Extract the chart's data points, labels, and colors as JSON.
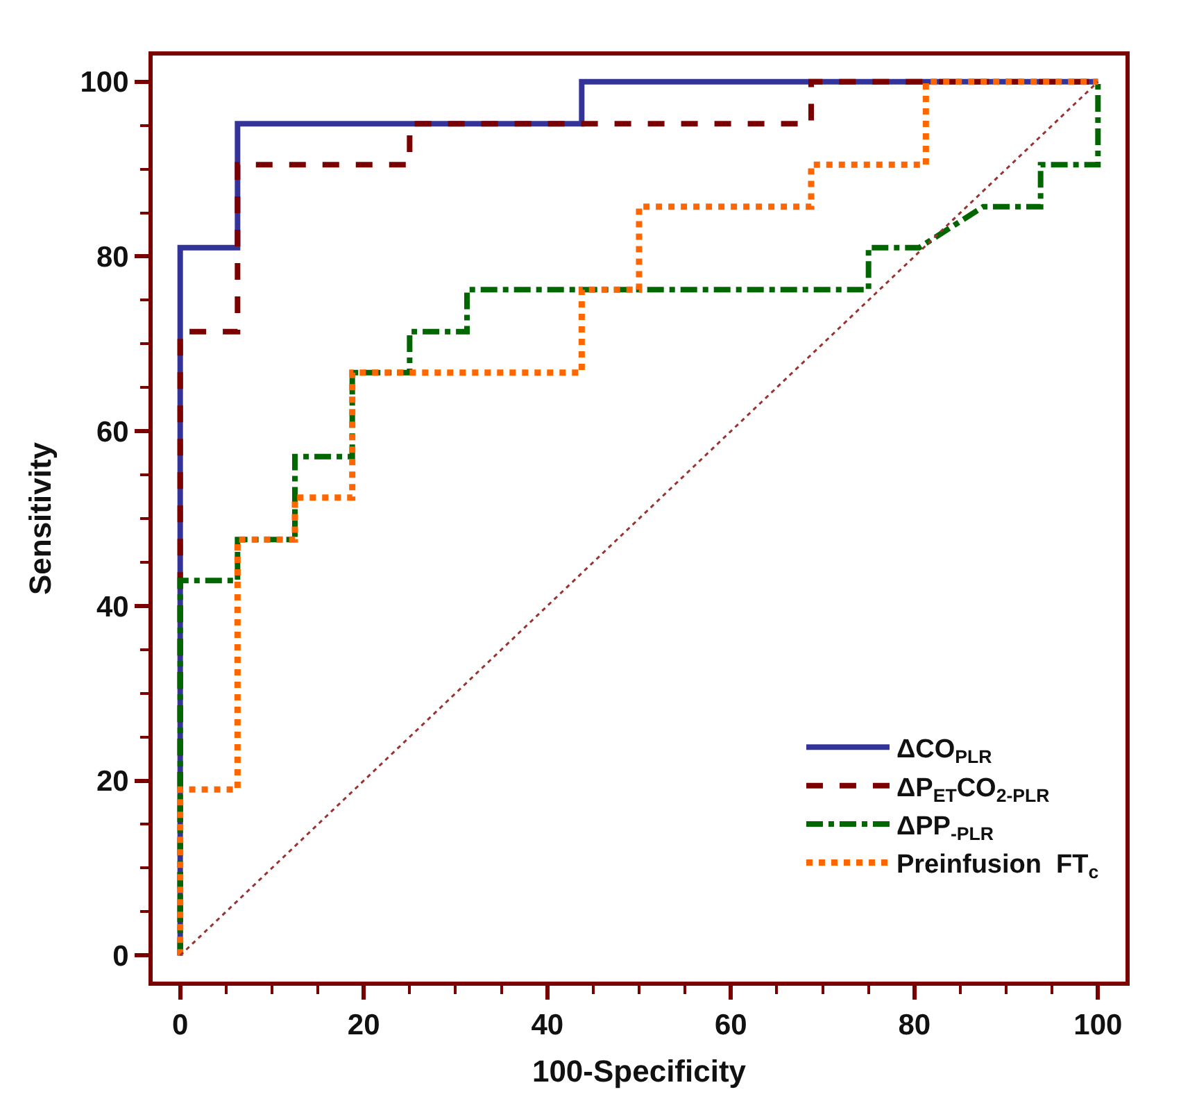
{
  "chart_data": {
    "type": "line",
    "xlabel": "100-Specificity",
    "ylabel": "Sensitivity",
    "xlim": [
      -3,
      103
    ],
    "ylim": [
      -3,
      103
    ],
    "xticks": [
      0,
      20,
      40,
      60,
      80,
      100
    ],
    "yticks": [
      0,
      20,
      40,
      60,
      80,
      100
    ],
    "legend": "bottom right",
    "marker": "none",
    "series": [
      {
        "name": "ΔCO$_{PLR}$",
        "color": "#333399",
        "line_style": "solid",
        "x": [
          0,
          0,
          6.25,
          6.25,
          43.75,
          43.75,
          100
        ],
        "values": [
          0,
          81.0,
          81.0,
          95.2,
          95.2,
          100,
          100
        ]
      },
      {
        "name": "ΔP$_{ET}$CO$_{2-PLR}$",
        "color": "#7b0000",
        "line_style": "dashed",
        "x": [
          0,
          0,
          6.25,
          6.25,
          25,
          25,
          68.75,
          68.75,
          100
        ],
        "values": [
          0,
          71.4,
          71.4,
          90.5,
          90.5,
          95.2,
          95.2,
          100,
          100
        ]
      },
      {
        "name": "ΔPP$_{-PLR}$",
        "color": "#006600",
        "line_style": "dashdot",
        "x": [
          0,
          0,
          6.25,
          6.25,
          12.5,
          12.5,
          18.75,
          18.75,
          25,
          25,
          31.25,
          31.25,
          75,
          75,
          80.5,
          87.5,
          93.75,
          93.75,
          100,
          100
        ],
        "values": [
          0,
          42.9,
          42.9,
          47.6,
          47.6,
          57.1,
          57.1,
          66.7,
          66.7,
          71.4,
          71.4,
          76.2,
          76.2,
          81.0,
          81.0,
          85.7,
          85.7,
          90.5,
          90.5,
          100
        ]
      },
      {
        "name": "Preinfusion  FT$_{c}$",
        "color": "#ff6600",
        "line_style": "dotted",
        "x": [
          0,
          0,
          6.25,
          6.25,
          12.5,
          12.5,
          18.75,
          18.75,
          43.75,
          43.75,
          50,
          50,
          68.75,
          68.75,
          81.25,
          81.25,
          100
        ],
        "values": [
          0,
          19.0,
          19.0,
          47.6,
          47.6,
          52.4,
          52.4,
          66.7,
          66.7,
          76.2,
          76.2,
          85.7,
          85.7,
          90.5,
          90.5,
          100,
          100
        ]
      },
      {
        "color": "#993333",
        "line_style": "dotted",
        "x": [
          0,
          100
        ],
        "values": [
          0,
          100
        ]
      }
    ]
  }
}
